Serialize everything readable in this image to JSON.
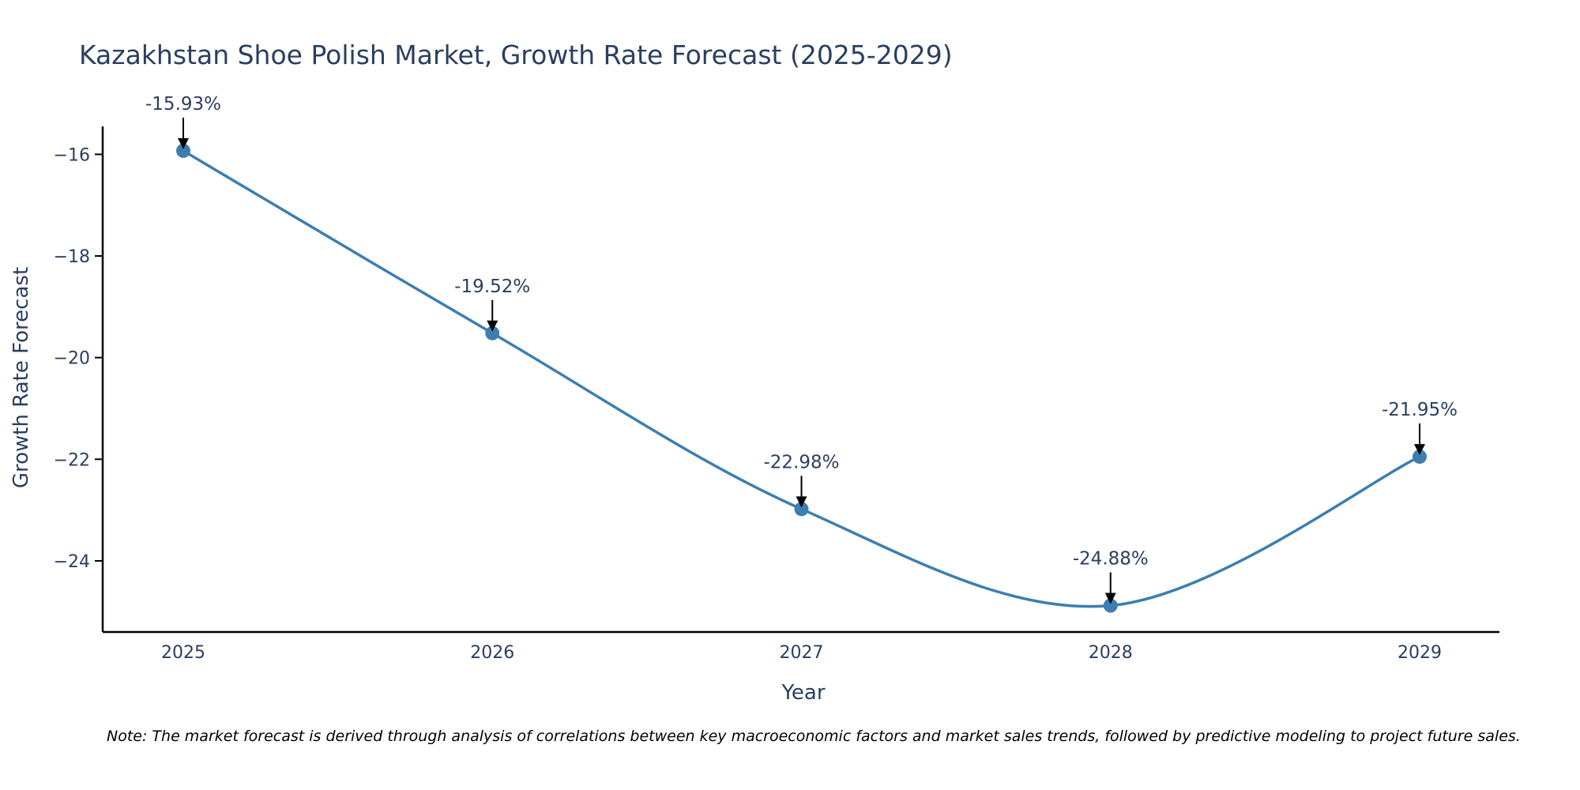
{
  "chart_data": {
    "type": "line",
    "title": "Kazakhstan Shoe Polish Market, Growth Rate Forecast (2025-2029)",
    "xlabel": "Year",
    "ylabel": "Growth Rate Forecast",
    "categories": [
      "2025",
      "2026",
      "2027",
      "2028",
      "2029"
    ],
    "series": [
      {
        "name": "Growth Rate Forecast",
        "values": [
          -15.93,
          -19.52,
          -22.98,
          -24.88,
          -21.95
        ],
        "color": "#3d7eb0"
      }
    ],
    "data_labels": [
      "-15.93%",
      "-19.52%",
      "-22.98%",
      "-24.88%",
      "-21.95%"
    ],
    "y_ticks": [
      -16,
      -18,
      -20,
      -22,
      -24
    ],
    "y_tick_labels": [
      "−16",
      "−18",
      "−20",
      "−22",
      "−24"
    ],
    "ylim": [
      -25.4,
      -15.45
    ],
    "grid": false,
    "line_shape": "spline",
    "axis_color": "#000000",
    "text_color": "#2a3f5f",
    "annotation_color": "#000000"
  },
  "note": "Note: The market forecast is derived through analysis of correlations between key macroeconomic factors and market sales trends, followed by predictive modeling to project future sales."
}
